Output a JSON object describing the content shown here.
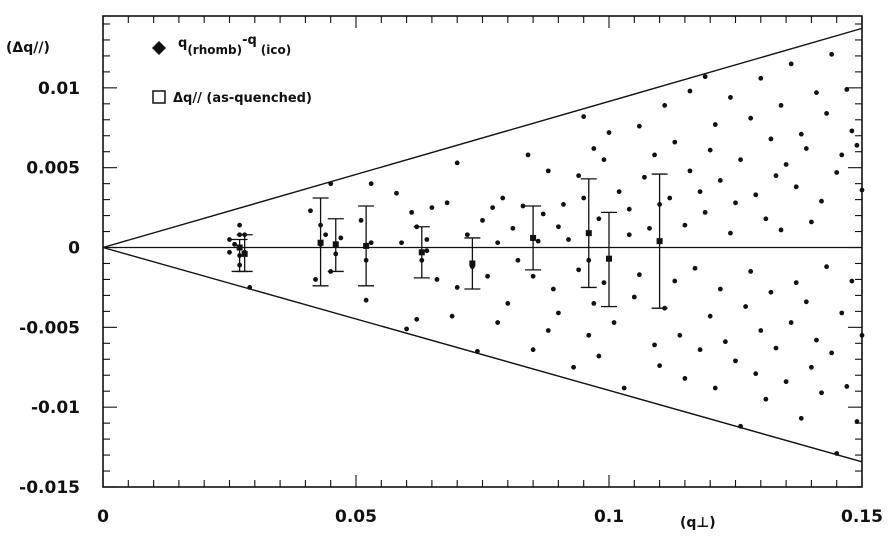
{
  "chart_data": {
    "type": "scatter",
    "ylabel": "(Δq//)",
    "xlabel": "(q⊥)",
    "xlim": [
      0,
      0.15
    ],
    "ylim": [
      -0.015,
      0.0145
    ],
    "x_ticks": [
      0,
      0.05,
      0.1,
      0.15
    ],
    "x_tick_labels": [
      "0",
      "0.05",
      "0.1",
      "0.15"
    ],
    "y_ticks": [
      0.01,
      0.005,
      0,
      -0.005,
      -0.01,
      -0.015
    ],
    "y_tick_labels": [
      "0.01",
      "0.005",
      "0",
      "-0.005",
      "-0.01",
      "-0.015"
    ],
    "grid": false,
    "legend_position": "top-left",
    "legend": [
      {
        "marker": "diamond",
        "label_main": "q",
        "label_sub1": "(rhomb)",
        "label_sup": "-q",
        "label_sub2": "(ico)"
      },
      {
        "marker": "open-square",
        "label": "Δq// (as-quenched)"
      }
    ],
    "envelope_lines": [
      {
        "slope": 0.0915
      },
      {
        "slope": -0.0895
      }
    ],
    "series": [
      {
        "name": "q(rhomb)-q(ico)",
        "marker": "diamond",
        "points": [
          [
            0.025,
            0.0005
          ],
          [
            0.025,
            -0.0003
          ],
          [
            0.026,
            0.0002
          ],
          [
            0.027,
            0.0014
          ],
          [
            0.027,
            0.0008
          ],
          [
            0.027,
            -0.0005
          ],
          [
            0.027,
            -0.0011
          ],
          [
            0.028,
            0.0008
          ],
          [
            0.028,
            -0.0003
          ],
          [
            0.029,
            -0.0025
          ],
          [
            0.041,
            0.0023
          ],
          [
            0.042,
            -0.002
          ],
          [
            0.043,
            0.0002
          ],
          [
            0.043,
            0.0014
          ],
          [
            0.044,
            0.0008
          ],
          [
            0.045,
            0.004
          ],
          [
            0.045,
            -0.0015
          ],
          [
            0.046,
            -0.0004
          ],
          [
            0.047,
            0.0006
          ],
          [
            0.051,
            0.0017
          ],
          [
            0.052,
            -0.0008
          ],
          [
            0.052,
            -0.0033
          ],
          [
            0.053,
            0.004
          ],
          [
            0.053,
            0.0003
          ],
          [
            0.058,
            0.0034
          ],
          [
            0.059,
            0.0003
          ],
          [
            0.06,
            -0.0051
          ],
          [
            0.061,
            0.0022
          ],
          [
            0.062,
            -0.0045
          ],
          [
            0.062,
            0.0013
          ],
          [
            0.063,
            -0.0008
          ],
          [
            0.064,
            0.0005
          ],
          [
            0.064,
            -0.0002
          ],
          [
            0.065,
            0.0025
          ],
          [
            0.066,
            -0.002
          ],
          [
            0.068,
            0.0028
          ],
          [
            0.069,
            -0.0043
          ],
          [
            0.07,
            0.0053
          ],
          [
            0.07,
            -0.0025
          ],
          [
            0.072,
            0.0008
          ],
          [
            0.073,
            -0.0012
          ],
          [
            0.074,
            -0.0065
          ],
          [
            0.075,
            0.0017
          ],
          [
            0.076,
            -0.0018
          ],
          [
            0.077,
            0.0025
          ],
          [
            0.078,
            0.0003
          ],
          [
            0.078,
            -0.0047
          ],
          [
            0.079,
            0.0031
          ],
          [
            0.08,
            -0.0035
          ],
          [
            0.081,
            0.0012
          ],
          [
            0.082,
            -0.0008
          ],
          [
            0.083,
            0.0026
          ],
          [
            0.084,
            0.0058
          ],
          [
            0.085,
            -0.0064
          ],
          [
            0.085,
            -0.0018
          ],
          [
            0.086,
            0.0004
          ],
          [
            0.087,
            0.0021
          ],
          [
            0.088,
            0.0048
          ],
          [
            0.088,
            -0.0052
          ],
          [
            0.089,
            -0.0026
          ],
          [
            0.09,
            0.0013
          ],
          [
            0.09,
            -0.0041
          ],
          [
            0.091,
            0.0027
          ],
          [
            0.092,
            0.0005
          ],
          [
            0.093,
            -0.0075
          ],
          [
            0.094,
            0.0045
          ],
          [
            0.094,
            -0.0014
          ],
          [
            0.095,
            0.0082
          ],
          [
            0.095,
            0.0031
          ],
          [
            0.096,
            -0.0055
          ],
          [
            0.096,
            -0.0008
          ],
          [
            0.097,
            0.0062
          ],
          [
            0.097,
            -0.0035
          ],
          [
            0.098,
            0.0018
          ],
          [
            0.098,
            -0.0068
          ],
          [
            0.099,
            0.0055
          ],
          [
            0.099,
            -0.0022
          ],
          [
            0.1,
            0.0072
          ],
          [
            0.101,
            -0.0047
          ],
          [
            0.102,
            0.0035
          ],
          [
            0.103,
            -0.0088
          ],
          [
            0.104,
            0.0008
          ],
          [
            0.104,
            0.0024
          ],
          [
            0.105,
            -0.0031
          ],
          [
            0.106,
            0.0076
          ],
          [
            0.106,
            -0.0017
          ],
          [
            0.107,
            0.0044
          ],
          [
            0.108,
            0.0012
          ],
          [
            0.109,
            -0.0061
          ],
          [
            0.109,
            0.0058
          ],
          [
            0.11,
            0.0027
          ],
          [
            0.11,
            -0.0074
          ],
          [
            0.111,
            0.0089
          ],
          [
            0.111,
            -0.0038
          ],
          [
            0.112,
            0.0031
          ],
          [
            0.113,
            -0.0021
          ],
          [
            0.113,
            0.0066
          ],
          [
            0.114,
            -0.0055
          ],
          [
            0.115,
            0.0014
          ],
          [
            0.115,
            -0.0082
          ],
          [
            0.116,
            0.0048
          ],
          [
            0.116,
            0.0098
          ],
          [
            0.117,
            -0.0013
          ],
          [
            0.118,
            0.0035
          ],
          [
            0.118,
            -0.0064
          ],
          [
            0.119,
            0.0107
          ],
          [
            0.119,
            0.0022
          ],
          [
            0.12,
            -0.0043
          ],
          [
            0.12,
            0.0061
          ],
          [
            0.121,
            -0.0088
          ],
          [
            0.121,
            0.0077
          ],
          [
            0.122,
            -0.0026
          ],
          [
            0.122,
            0.0042
          ],
          [
            0.123,
            -0.0059
          ],
          [
            0.124,
            0.0009
          ],
          [
            0.124,
            0.0094
          ],
          [
            0.125,
            -0.0071
          ],
          [
            0.125,
            0.0028
          ],
          [
            0.126,
            -0.0112
          ],
          [
            0.126,
            0.0055
          ],
          [
            0.127,
            -0.0037
          ],
          [
            0.128,
            0.0081
          ],
          [
            0.128,
            -0.0015
          ],
          [
            0.129,
            0.0033
          ],
          [
            0.129,
            -0.0079
          ],
          [
            0.13,
            0.0106
          ],
          [
            0.13,
            -0.0052
          ],
          [
            0.131,
            0.0018
          ],
          [
            0.131,
            -0.0095
          ],
          [
            0.132,
            0.0068
          ],
          [
            0.132,
            -0.0028
          ],
          [
            0.133,
            0.0045
          ],
          [
            0.133,
            -0.0063
          ],
          [
            0.134,
            0.0089
          ],
          [
            0.134,
            0.0011
          ],
          [
            0.135,
            -0.0084
          ],
          [
            0.135,
            0.0052
          ],
          [
            0.136,
            -0.0047
          ],
          [
            0.136,
            0.0115
          ],
          [
            0.137,
            -0.0022
          ],
          [
            0.137,
            0.0038
          ],
          [
            0.138,
            -0.0107
          ],
          [
            0.138,
            0.0071
          ],
          [
            0.139,
            -0.0034
          ],
          [
            0.139,
            0.0062
          ],
          [
            0.14,
            -0.0075
          ],
          [
            0.14,
            0.0016
          ],
          [
            0.141,
            0.0097
          ],
          [
            0.141,
            -0.0058
          ],
          [
            0.142,
            0.0029
          ],
          [
            0.142,
            -0.0091
          ],
          [
            0.143,
            0.0084
          ],
          [
            0.143,
            -0.0012
          ],
          [
            0.144,
            0.0121
          ],
          [
            0.144,
            -0.0066
          ],
          [
            0.145,
            0.0047
          ],
          [
            0.145,
            -0.0129
          ],
          [
            0.146,
            0.0058
          ],
          [
            0.146,
            -0.0041
          ],
          [
            0.147,
            0.0099
          ],
          [
            0.147,
            -0.0087
          ],
          [
            0.148,
            0.0073
          ],
          [
            0.148,
            -0.0021
          ],
          [
            0.149,
            0.0064
          ],
          [
            0.149,
            -0.0109
          ],
          [
            0.15,
            0.0036
          ],
          [
            0.15,
            -0.0055
          ]
        ]
      },
      {
        "name": "Δq// (as-quenched)",
        "marker": "open-square",
        "errorbars": true,
        "points": [
          {
            "x": 0.027,
            "y": 0.0,
            "lo": -0.0015,
            "hi": 0.0005
          },
          {
            "x": 0.028,
            "y": -0.0004,
            "lo": -0.0015,
            "hi": 0.0008
          },
          {
            "x": 0.043,
            "y": 0.0003,
            "lo": -0.0024,
            "hi": 0.0031
          },
          {
            "x": 0.046,
            "y": 0.0002,
            "lo": -0.0015,
            "hi": 0.0018
          },
          {
            "x": 0.052,
            "y": 0.0001,
            "lo": -0.0024,
            "hi": 0.0026
          },
          {
            "x": 0.063,
            "y": -0.0003,
            "lo": -0.0019,
            "hi": 0.0013
          },
          {
            "x": 0.073,
            "y": -0.001,
            "lo": -0.0026,
            "hi": 0.0006
          },
          {
            "x": 0.085,
            "y": 0.0006,
            "lo": -0.0014,
            "hi": 0.0026
          },
          {
            "x": 0.096,
            "y": 0.0009,
            "lo": -0.0025,
            "hi": 0.0043
          },
          {
            "x": 0.1,
            "y": -0.0007,
            "lo": -0.0037,
            "hi": 0.0022
          },
          {
            "x": 0.11,
            "y": 0.0004,
            "lo": -0.0038,
            "hi": 0.0046
          }
        ]
      }
    ]
  }
}
